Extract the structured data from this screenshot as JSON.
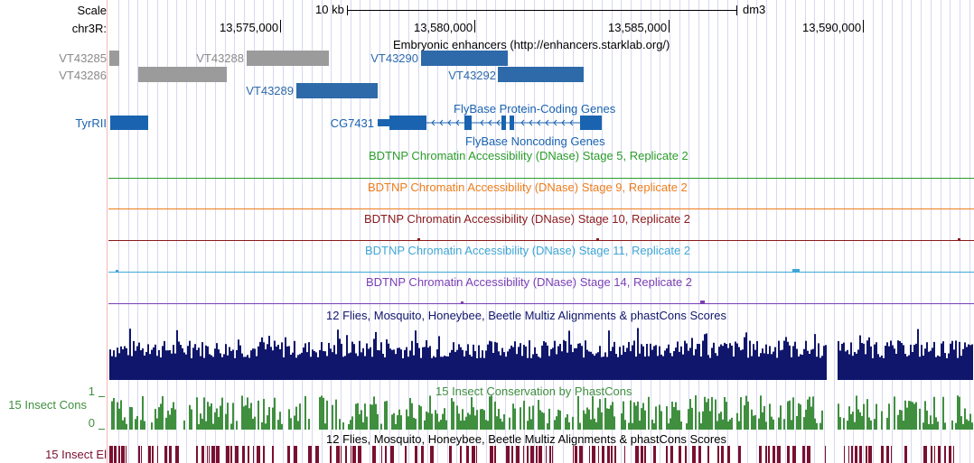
{
  "genome_browser": {
    "scale": {
      "label": "Scale",
      "bar_text": "10 kb",
      "assembly": "dm3"
    },
    "position": {
      "chrom_label": "chr3R:",
      "ticks": [
        "13,575,000",
        "13,580,000",
        "13,585,000",
        "13,590,000"
      ]
    },
    "tracks": {
      "enhancers": {
        "title": "Embryonic enhancers (http://enhancers.starklab.org/)",
        "features": [
          "VT43285",
          "VT43286",
          "VT43288",
          "VT43289",
          "VT43290",
          "VT43292"
        ],
        "colors": {
          "gray": "#9b9b9b",
          "blue": "#2e6aa9"
        }
      },
      "genes": {
        "title": "FlyBase Protein-Coding Genes",
        "genes": [
          "TyrRII",
          "CG7431"
        ],
        "color": "#1a63b0"
      },
      "noncoding": {
        "title": "FlyBase Noncoding Genes",
        "color": "#1a63b0"
      },
      "dnase": [
        {
          "title": "BDTNP Chromatin Accessibility (DNase) Stage 5, Replicate 2",
          "color": "#2a9c2a"
        },
        {
          "title": "BDTNP Chromatin Accessibility (DNase) Stage 9, Replicate 2",
          "color": "#ef7d1a"
        },
        {
          "title": "BDTNP Chromatin Accessibility (DNase) Stage 10, Replicate 2",
          "color": "#8b1a1a"
        },
        {
          "title": "BDTNP Chromatin Accessibility (DNase) Stage 11, Replicate 2",
          "color": "#3fa6d6"
        },
        {
          "title": "BDTNP Chromatin Accessibility (DNase) Stage 14, Replicate 2",
          "color": "#7a3fb5"
        }
      ],
      "multiz": {
        "title": "12 Flies, Mosquito, Honeybee, Beetle Multiz Alignments & phastCons Scores",
        "color": "#10166b"
      },
      "phastcons": {
        "title": "15 Insect Conservation by PhastCons",
        "side_label": "15 Insect Cons",
        "axis_max": "1",
        "axis_min": "0",
        "color": "#3f8f3f"
      },
      "elements": {
        "title": "12 Flies, Mosquito, Honeybee, Beetle Multiz Alignments & phastCons Scores",
        "side_label": "15 Insect El",
        "color": "#7a1030"
      }
    }
  }
}
